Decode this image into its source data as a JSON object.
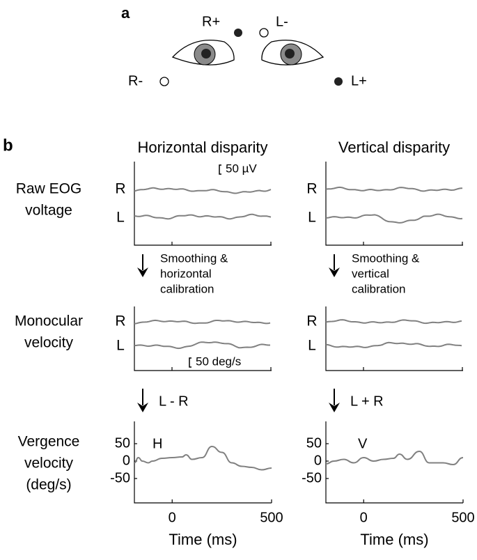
{
  "figure": {
    "panel_a_label": "a",
    "panel_b_label": "b",
    "electrodes": {
      "r_plus": "R+",
      "l_minus": "L-",
      "r_minus": "R-",
      "l_plus": "L+"
    },
    "row_labels": {
      "raw": [
        "Raw EOG",
        "voltage"
      ],
      "monocular": [
        "Monocular",
        "velocity"
      ],
      "vergence": [
        "Vergence",
        "velocity",
        "(deg/s)"
      ]
    },
    "eye_labels": [
      "R",
      "L"
    ],
    "columns": [
      {
        "title": "Horizontal disparity",
        "step1": [
          "Smoothing &",
          "horizontal",
          "calibration"
        ],
        "step2": "L - R"
      },
      {
        "title": "Vertical disparity",
        "step1": [
          "Smoothing &",
          "vertical",
          "calibration"
        ],
        "step2": "L + R"
      }
    ],
    "scale_bars": {
      "voltage": "50 µV",
      "velocity": "50 deg/s"
    }
  },
  "chart_data": [
    {
      "type": "line",
      "annotation": "H",
      "x_label": "Time (ms)",
      "x": [
        -190,
        -170,
        -150,
        -120,
        -100,
        -50,
        0,
        50,
        70,
        100,
        150,
        200,
        250,
        300,
        350,
        400,
        450,
        500
      ],
      "series": [
        {
          "color": "#808080",
          "values": [
            -5,
            10,
            0,
            -5,
            0,
            8,
            10,
            12,
            18,
            5,
            10,
            42,
            25,
            -5,
            -15,
            -18,
            -25,
            -20
          ]
        }
      ],
      "xlim": [
        -190,
        500
      ],
      "ylim": [
        -120,
        114
      ],
      "xticks": [
        0,
        500
      ],
      "yticks": [
        -50,
        0,
        50
      ]
    },
    {
      "type": "line",
      "annotation": "V",
      "x_label": "Time (ms)",
      "x": [
        -190,
        -150,
        -100,
        -50,
        0,
        50,
        100,
        150,
        180,
        220,
        280,
        330,
        400,
        450,
        500
      ],
      "series": [
        {
          "color": "#808080",
          "values": [
            -8,
            0,
            5,
            -5,
            10,
            0,
            5,
            8,
            20,
            5,
            28,
            -5,
            -5,
            -10,
            10
          ]
        }
      ],
      "xlim": [
        -190,
        500
      ],
      "ylim": [
        -120,
        114
      ],
      "xticks": [
        0,
        500
      ],
      "yticks": [
        -50,
        0,
        50
      ]
    }
  ]
}
